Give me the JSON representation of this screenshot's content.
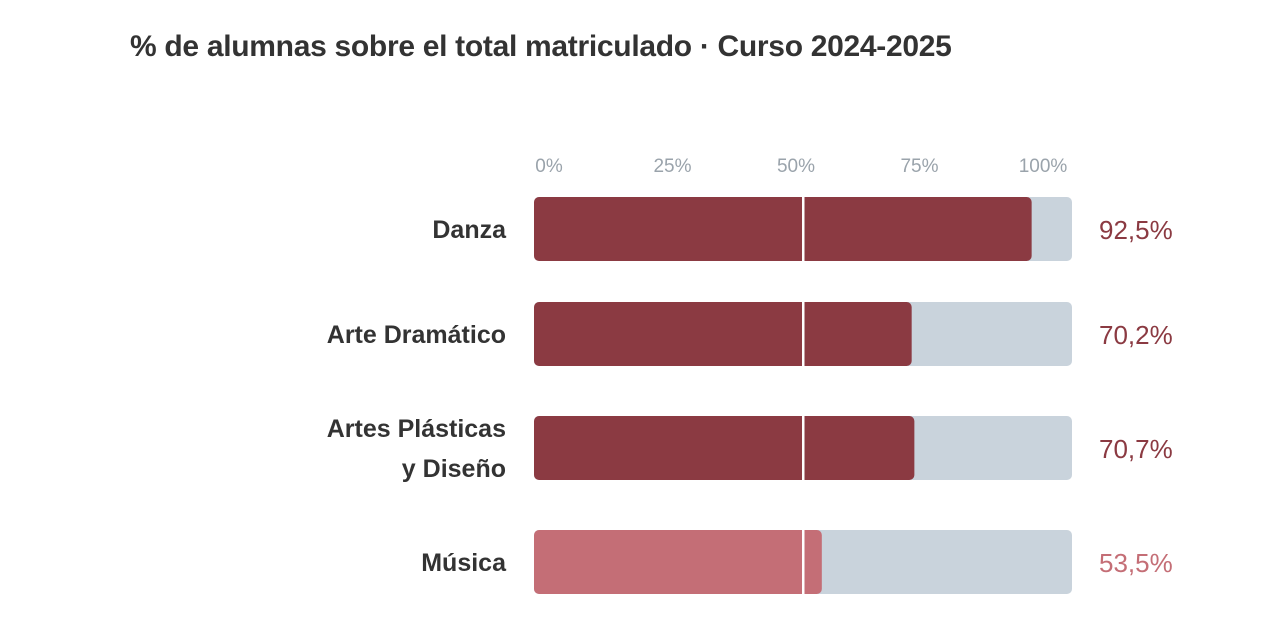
{
  "chart_data": {
    "type": "bar",
    "orientation": "horizontal",
    "title": "% de alumnas sobre el total matriculado · Curso 2024-2025",
    "categories": [
      [
        "Danza"
      ],
      [
        "Arte Dramático"
      ],
      [
        "Artes Plásticas",
        "y Diseño"
      ],
      [
        "Música"
      ]
    ],
    "values": [
      92.5,
      70.2,
      70.7,
      53.5
    ],
    "value_labels": [
      "92,5%",
      "70,2%",
      "70,7%",
      "53,5%"
    ],
    "xlim": [
      0,
      100
    ],
    "ticks": [
      0,
      25,
      50,
      75,
      100
    ],
    "tick_labels": [
      "0%",
      "25%",
      "50%",
      "75%",
      "100%"
    ],
    "reference_line": 50,
    "grid": false,
    "legend": "none",
    "colors": {
      "bar": "#8B3A42",
      "bar_highlight": "#C46E76",
      "track": "#C9D3DC",
      "reference_line": "#ffffff"
    },
    "highlight_index": 3
  }
}
